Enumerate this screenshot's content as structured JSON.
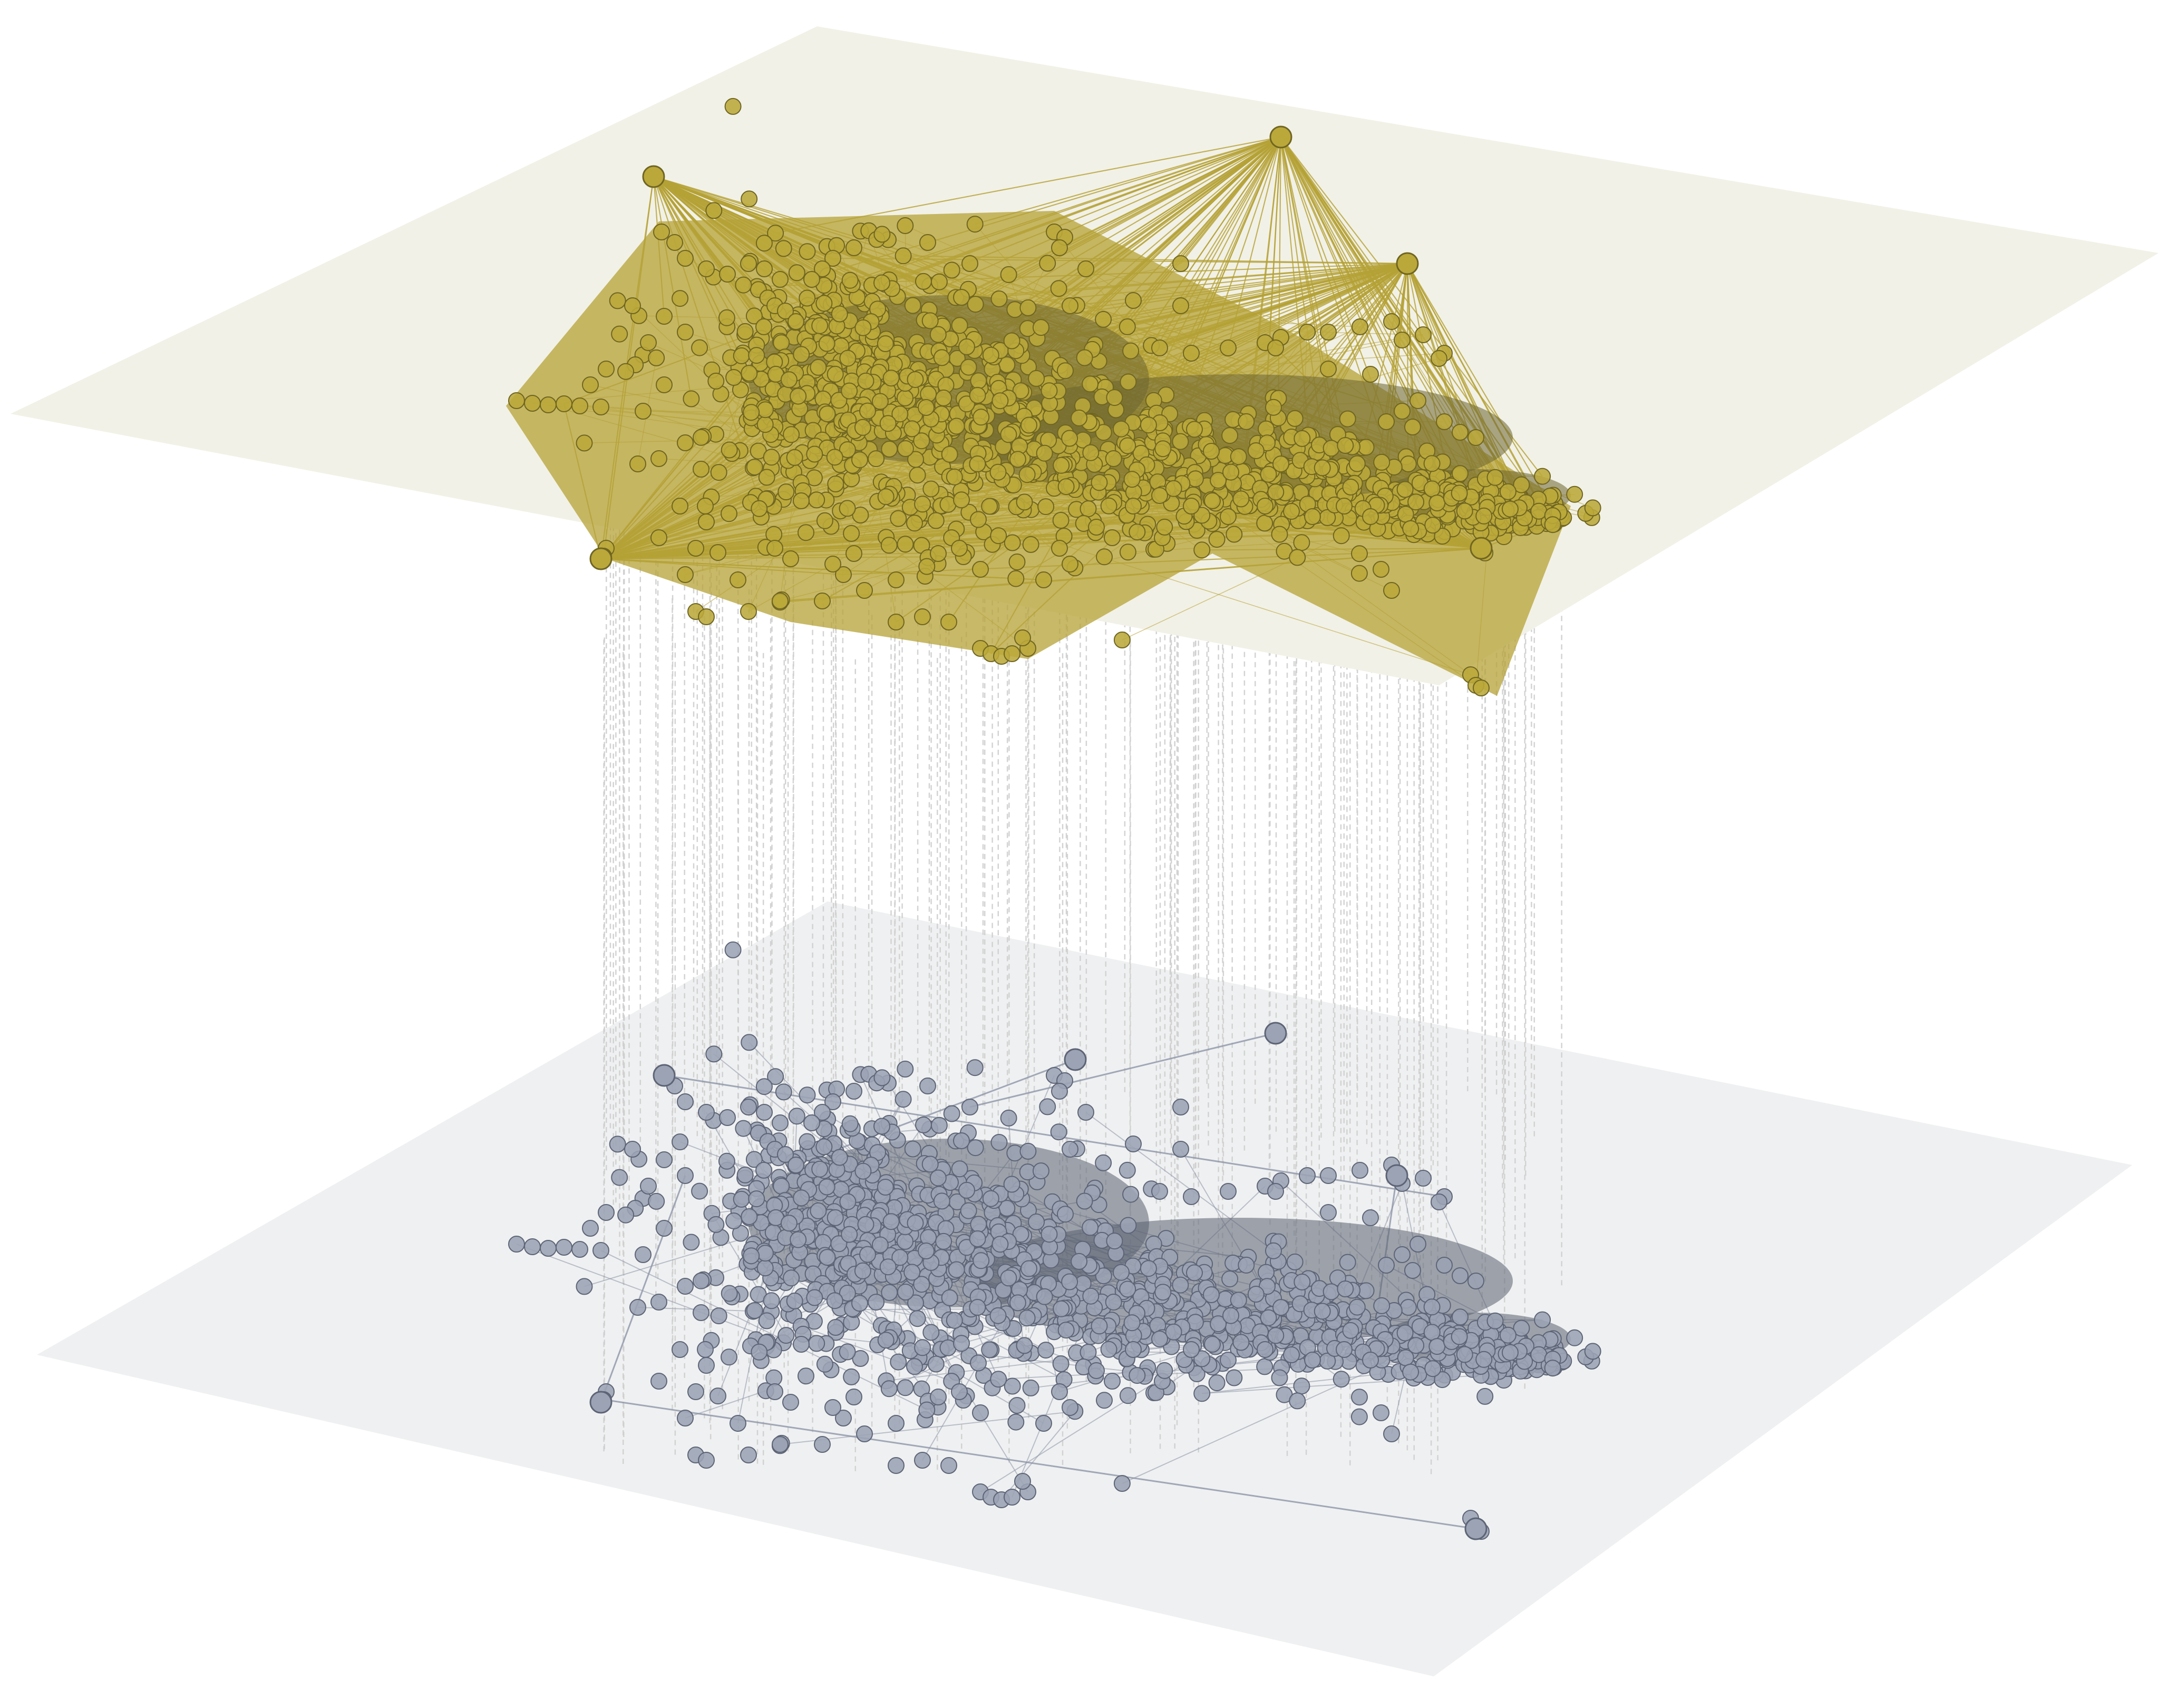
{
  "diagram": {
    "type": "multilayer-network-3d",
    "layers": [
      {
        "name": "top-layer",
        "plane_color": "#f2f1e7",
        "node_fill": "#bba83a",
        "node_stroke": "#6f6522",
        "edge_color": "#b5a236",
        "dense_core_color": "#6b6430",
        "edge_style": "dense-hub-spokes"
      },
      {
        "name": "bottom-layer",
        "plane_color": "#eff0f1",
        "node_fill": "#9ba3b4",
        "node_stroke": "#5d6476",
        "edge_color": "#8d95a8",
        "dense_core_color": "#5a6070",
        "edge_style": "sparse-branches"
      }
    ],
    "interlayer_links": {
      "style": "dashed",
      "color": "#cfcfcf"
    }
  }
}
